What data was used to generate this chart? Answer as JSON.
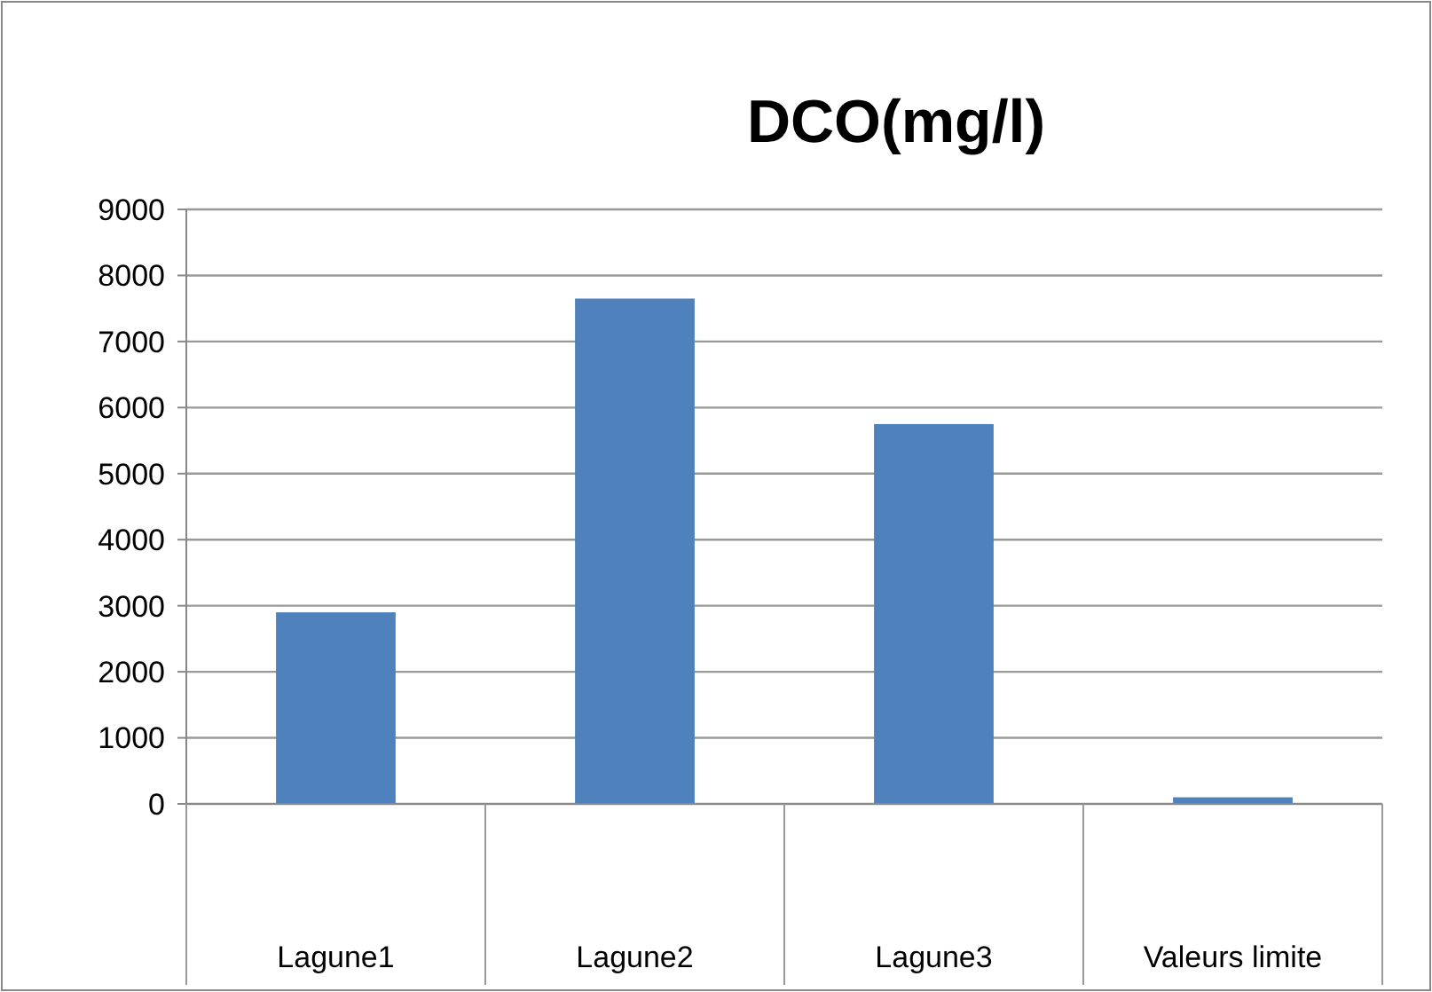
{
  "chart_data": {
    "type": "bar",
    "title": "DCO(mg/l)",
    "categories": [
      "Lagune1",
      "Lagune2",
      "Lagune3",
      "Valeurs limite"
    ],
    "values": [
      2900,
      7650,
      5750,
      100
    ],
    "color": "#4f81bd",
    "ylim": [
      0,
      9000
    ],
    "yticks": [
      0,
      1000,
      2000,
      3000,
      4000,
      5000,
      6000,
      7000,
      8000,
      9000
    ],
    "grid": "y"
  }
}
